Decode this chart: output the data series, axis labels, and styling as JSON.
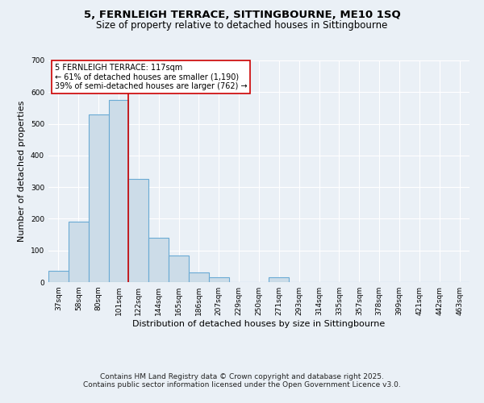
{
  "title_line1": "5, FERNLEIGH TERRACE, SITTINGBOURNE, ME10 1SQ",
  "title_line2": "Size of property relative to detached houses in Sittingbourne",
  "xlabel": "Distribution of detached houses by size in Sittingbourne",
  "ylabel": "Number of detached properties",
  "bar_labels": [
    "37sqm",
    "58sqm",
    "80sqm",
    "101sqm",
    "122sqm",
    "144sqm",
    "165sqm",
    "186sqm",
    "207sqm",
    "229sqm",
    "250sqm",
    "271sqm",
    "293sqm",
    "314sqm",
    "335sqm",
    "357sqm",
    "378sqm",
    "399sqm",
    "421sqm",
    "442sqm",
    "463sqm"
  ],
  "bar_heights": [
    35,
    190,
    530,
    575,
    325,
    140,
    85,
    30,
    15,
    0,
    0,
    15,
    0,
    0,
    0,
    0,
    0,
    0,
    0,
    0,
    0
  ],
  "bar_color": "#ccdce8",
  "bar_edge_color": "#6aaad4",
  "bar_edge_width": 0.8,
  "marker_index": 4,
  "marker_color": "#cc0000",
  "ylim": [
    0,
    700
  ],
  "yticks": [
    0,
    100,
    200,
    300,
    400,
    500,
    600,
    700
  ],
  "annotation_title": "5 FERNLEIGH TERRACE: 117sqm",
  "annotation_line1": "← 61% of detached houses are smaller (1,190)",
  "annotation_line2": "39% of semi-detached houses are larger (762) →",
  "annotation_box_color": "#ffffff",
  "annotation_box_edge": "#cc0000",
  "footer_line1": "Contains HM Land Registry data © Crown copyright and database right 2025.",
  "footer_line2": "Contains public sector information licensed under the Open Government Licence v3.0.",
  "bg_color": "#eaf0f6",
  "grid_color": "#ffffff",
  "title_fontsize": 9.5,
  "subtitle_fontsize": 8.5,
  "axis_label_fontsize": 8,
  "tick_fontsize": 6.5,
  "annotation_fontsize": 7,
  "footer_fontsize": 6.5
}
